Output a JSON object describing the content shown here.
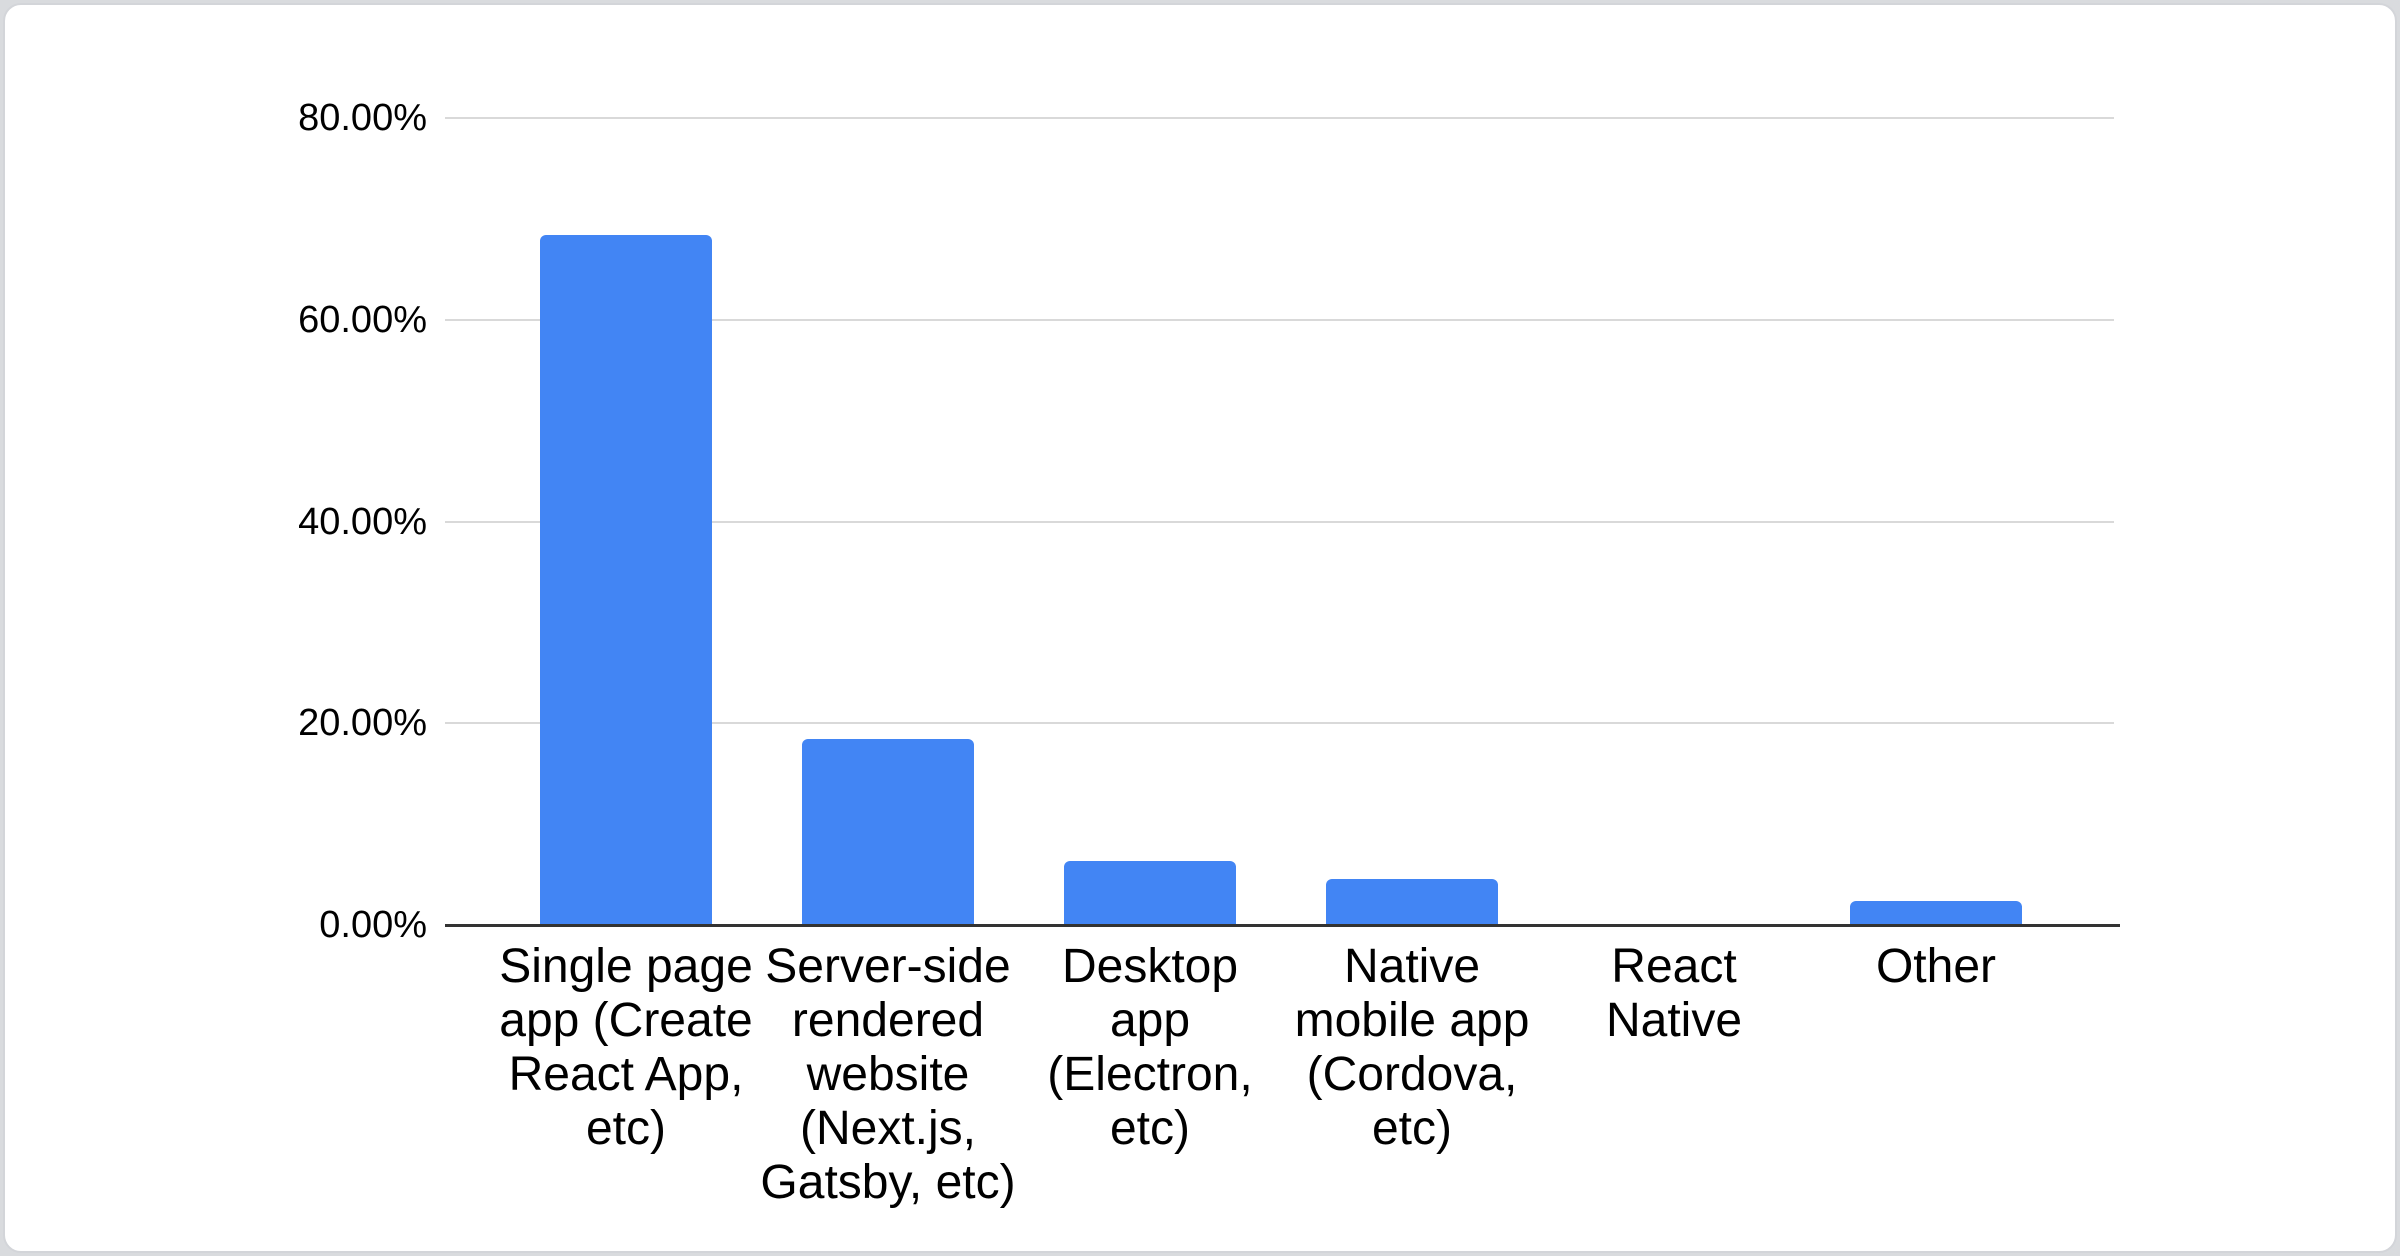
{
  "chart_data": {
    "type": "bar",
    "title": "",
    "xlabel": "",
    "ylabel": "",
    "categories": [
      "Single page app (Create React App, etc)",
      "Server-side rendered website (Next.js, Gatsby, etc)",
      "Desktop app (Electron, etc)",
      "Native mobile app (Cordova, etc)",
      "React Native",
      "Other"
    ],
    "category_label_lines": [
      "Single page\napp (Create\nReact App,\netc)",
      "Server-side\nrendered\nwebsite\n(Next.js,\nGatsby, etc)",
      "Desktop\napp\n(Electron,\netc)",
      "Native\nmobile app\n(Cordova,\netc)",
      "React\nNative",
      "Other"
    ],
    "values": [
      68.4,
      18.4,
      6.3,
      4.6,
      0,
      2.4
    ],
    "unit": "%",
    "y_axis": {
      "tick_values": [
        0,
        20,
        40,
        60,
        80
      ],
      "tick_labels": [
        "0.00%",
        "20.00%",
        "40.00%",
        "60.00%",
        "80.00%"
      ]
    },
    "ylim": [
      0,
      80
    ],
    "grid": true,
    "legend": "none",
    "colors": {
      "bar": "#4285f4",
      "gridline": "#d9d9d9",
      "axis": "#333333",
      "text": "#000000",
      "card_background": "#ffffff",
      "card_border": "#d3d5d9",
      "page_background": "#d9dbde"
    }
  }
}
